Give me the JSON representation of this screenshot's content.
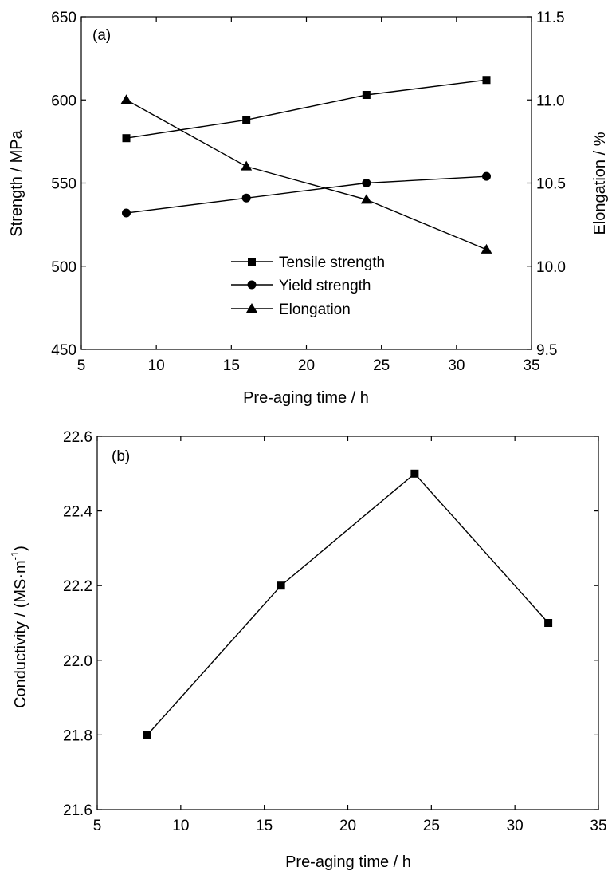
{
  "chart_data": [
    {
      "panel_label": "(a)",
      "type": "line",
      "x": [
        8,
        16,
        24,
        32
      ],
      "xlabel": "Pre-aging time / h",
      "xlim": [
        5,
        35
      ],
      "xticks": [
        5,
        10,
        15,
        20,
        25,
        30,
        35
      ],
      "ylabel": "Strength / MPa",
      "ylim": [
        450,
        650
      ],
      "yticks": [
        450,
        500,
        550,
        600,
        650
      ],
      "y2label": "Elongation / %",
      "y2lim": [
        9.5,
        11.5
      ],
      "y2ticks": [
        "9.5",
        "10.0",
        "10.5",
        "11.0",
        "11.5"
      ],
      "grid": false,
      "legend_placement": "lower-center",
      "series": [
        {
          "name": "Tensile strength",
          "axis": "left",
          "marker": "square",
          "values": [
            577,
            588,
            603,
            612
          ]
        },
        {
          "name": "Yield strength",
          "axis": "left",
          "marker": "circle",
          "values": [
            532,
            541,
            550,
            554
          ]
        },
        {
          "name": "Elongation",
          "axis": "right",
          "marker": "triangle",
          "values": [
            11.0,
            10.6,
            10.4,
            10.1
          ]
        }
      ]
    },
    {
      "panel_label": "(b)",
      "type": "line",
      "x": [
        8,
        16,
        24,
        32
      ],
      "xlabel": "Pre-aging time / h",
      "xlim": [
        5,
        35
      ],
      "xticks": [
        5,
        10,
        15,
        20,
        25,
        30,
        35
      ],
      "ylabel": "Conductivity / (MS·m",
      "ylabel_sup": "-1",
      "ylabel_tail": ")",
      "ylim": [
        21.6,
        22.6
      ],
      "yticks": [
        "21.6",
        "21.8",
        "22.0",
        "22.2",
        "22.4",
        "22.6"
      ],
      "grid": false,
      "series": [
        {
          "marker": "square",
          "values": [
            21.8,
            22.2,
            22.5,
            22.1
          ]
        }
      ]
    }
  ]
}
